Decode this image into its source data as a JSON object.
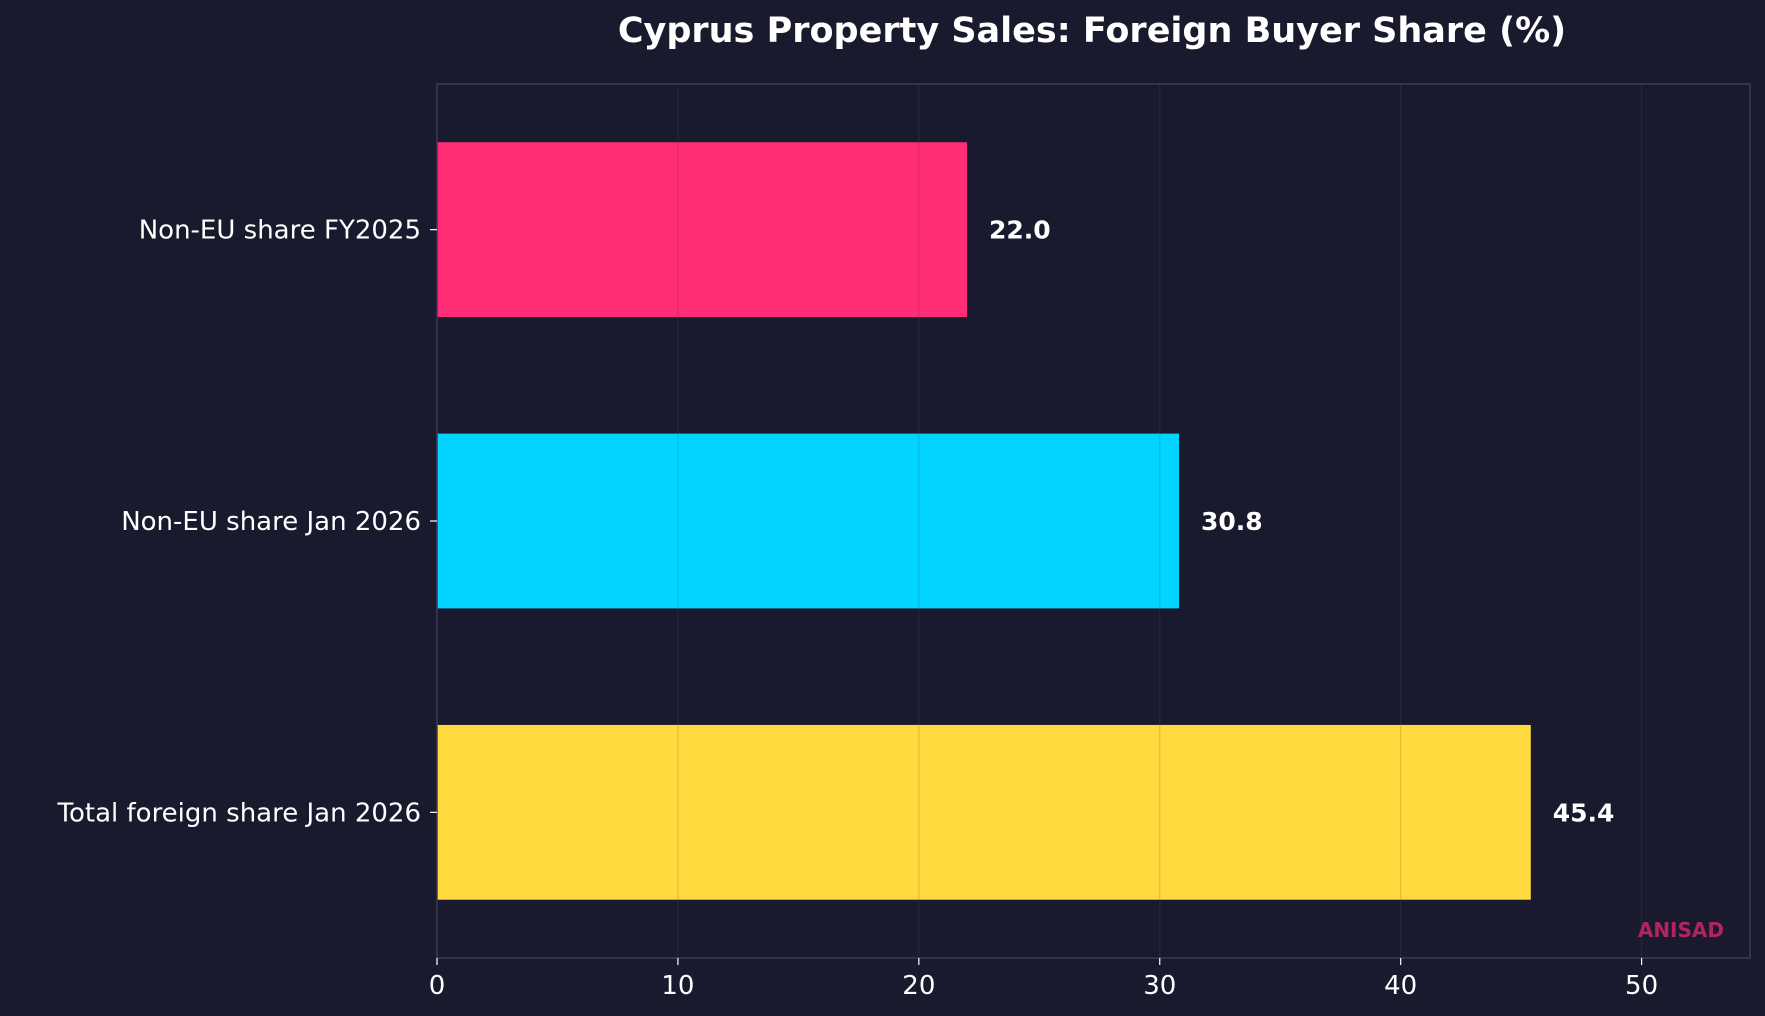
{
  "chart_data": {
    "type": "bar",
    "orientation": "horizontal",
    "title": "Cyprus Property Sales: Foreign Buyer Share (%)",
    "xlabel": "",
    "ylabel": "",
    "categories": [
      "Non-EU share FY2025",
      "Non-EU share Jan 2026",
      "Total foreign share Jan 2026"
    ],
    "values": [
      22.0,
      30.8,
      45.4
    ],
    "value_labels": [
      "22.0",
      "30.8",
      "45.4"
    ],
    "colors": [
      "#ff2d75",
      "#00d4ff",
      "#ffd93d"
    ],
    "xlim": [
      0,
      54.5
    ],
    "xticks": [
      0,
      10,
      20,
      30,
      40,
      50
    ],
    "grid": "vertical",
    "legend": "none"
  },
  "watermark": "ANISAD",
  "theme": {
    "background": "#1a1a2e",
    "axis_color": "#3a3a55",
    "grid_color": "#5a5a6e",
    "text_color": "#ffffff",
    "watermark_color": "#b3245f"
  }
}
